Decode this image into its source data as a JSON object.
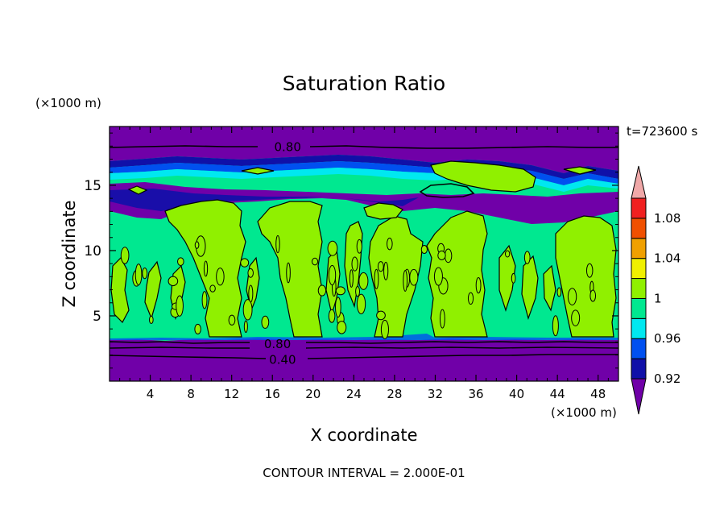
{
  "chart_data": {
    "type": "contour",
    "title": "Saturation Ratio",
    "xlabel": "X coordinate",
    "ylabel": "Z coordinate",
    "x_unit": "(×1000 m)",
    "y_unit": "(×1000 m)",
    "time_label": "t=723600 s",
    "footer": "CONTOUR INTERVAL = 2.000E-01",
    "xlim": [
      0,
      50
    ],
    "ylim": [
      0,
      19.5
    ],
    "x_ticks": [
      4,
      8,
      12,
      16,
      20,
      24,
      28,
      32,
      36,
      40,
      44,
      48
    ],
    "y_ticks": [
      5,
      10,
      15
    ],
    "contour_labels": [
      {
        "text": "0.80",
        "x": 17.5,
        "z": 18.0
      },
      {
        "text": "0.80",
        "x": 16.5,
        "z": 2.9
      },
      {
        "text": "0.40",
        "x": 17.0,
        "z": 1.7
      }
    ],
    "colorbar": {
      "labels": [
        "1.08",
        "1.04",
        "1",
        "0.96",
        "0.92"
      ],
      "levels": [
        0.92,
        0.94,
        0.96,
        0.98,
        1.0,
        1.02,
        1.04,
        1.06,
        1.08,
        1.1
      ],
      "colors": [
        "#7000a8",
        "#1010a8",
        "#0050f0",
        "#00e8f0",
        "#00e890",
        "#90f000",
        "#f0f000",
        "#f0a000",
        "#f05000",
        "#f02020",
        "#f0a8a8"
      ]
    },
    "field_colors": {
      "dry": "#7000a8",
      "near_saturated": "#00e890",
      "saturated": "#90f000"
    }
  }
}
